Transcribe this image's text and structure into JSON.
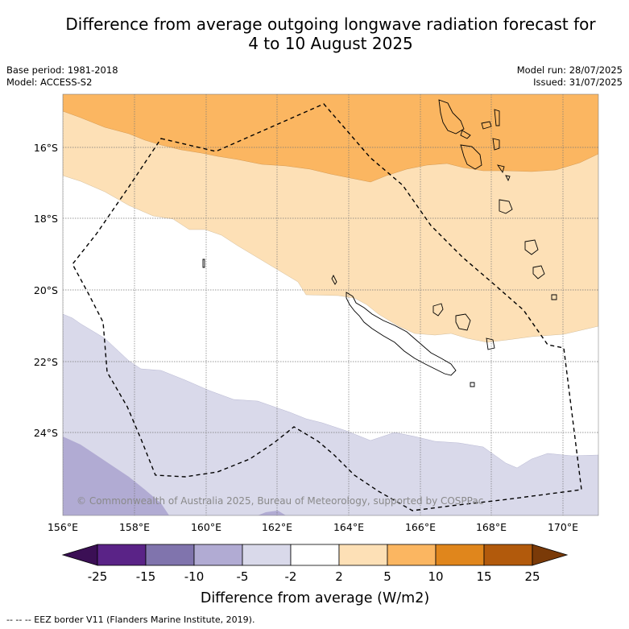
{
  "title_line1": "Difference from average outgoing longwave radiation forecast for",
  "title_line2": "4 to 10 August 2025",
  "base_period": "Base period: 1981-2018",
  "model": "Model: ACCESS-S2",
  "model_run": "Model run: 28/07/2025",
  "issued": "Issued: 31/07/2025",
  "copyright": "© Commonwealth of Australia 2025, Bureau of Meteorology, supported by COSPPac",
  "x_ticks": [
    "156°E",
    "158°E",
    "160°E",
    "162°E",
    "164°E",
    "166°E",
    "168°E",
    "170°E"
  ],
  "y_ticks": [
    "16°S",
    "18°S",
    "20°S",
    "22°S",
    "24°S"
  ],
  "colorbar_labels": [
    "-25",
    "-15",
    "-10",
    "-5",
    "-2",
    "2",
    "5",
    "10",
    "15",
    "25"
  ],
  "colorbar_colors": [
    "#3b0f55",
    "#5a2387",
    "#8074ad",
    "#b1abd3",
    "#d9d9ea",
    "#ffffff",
    "#fde0b6",
    "#fbb661",
    "#e0861c",
    "#b25a0c",
    "#7a3a08"
  ],
  "colorbar_title": "Difference from average (W/m2)",
  "footnote": "--  --  -- EEZ border V11 (Flanders Marine Institute, 2019)."
}
